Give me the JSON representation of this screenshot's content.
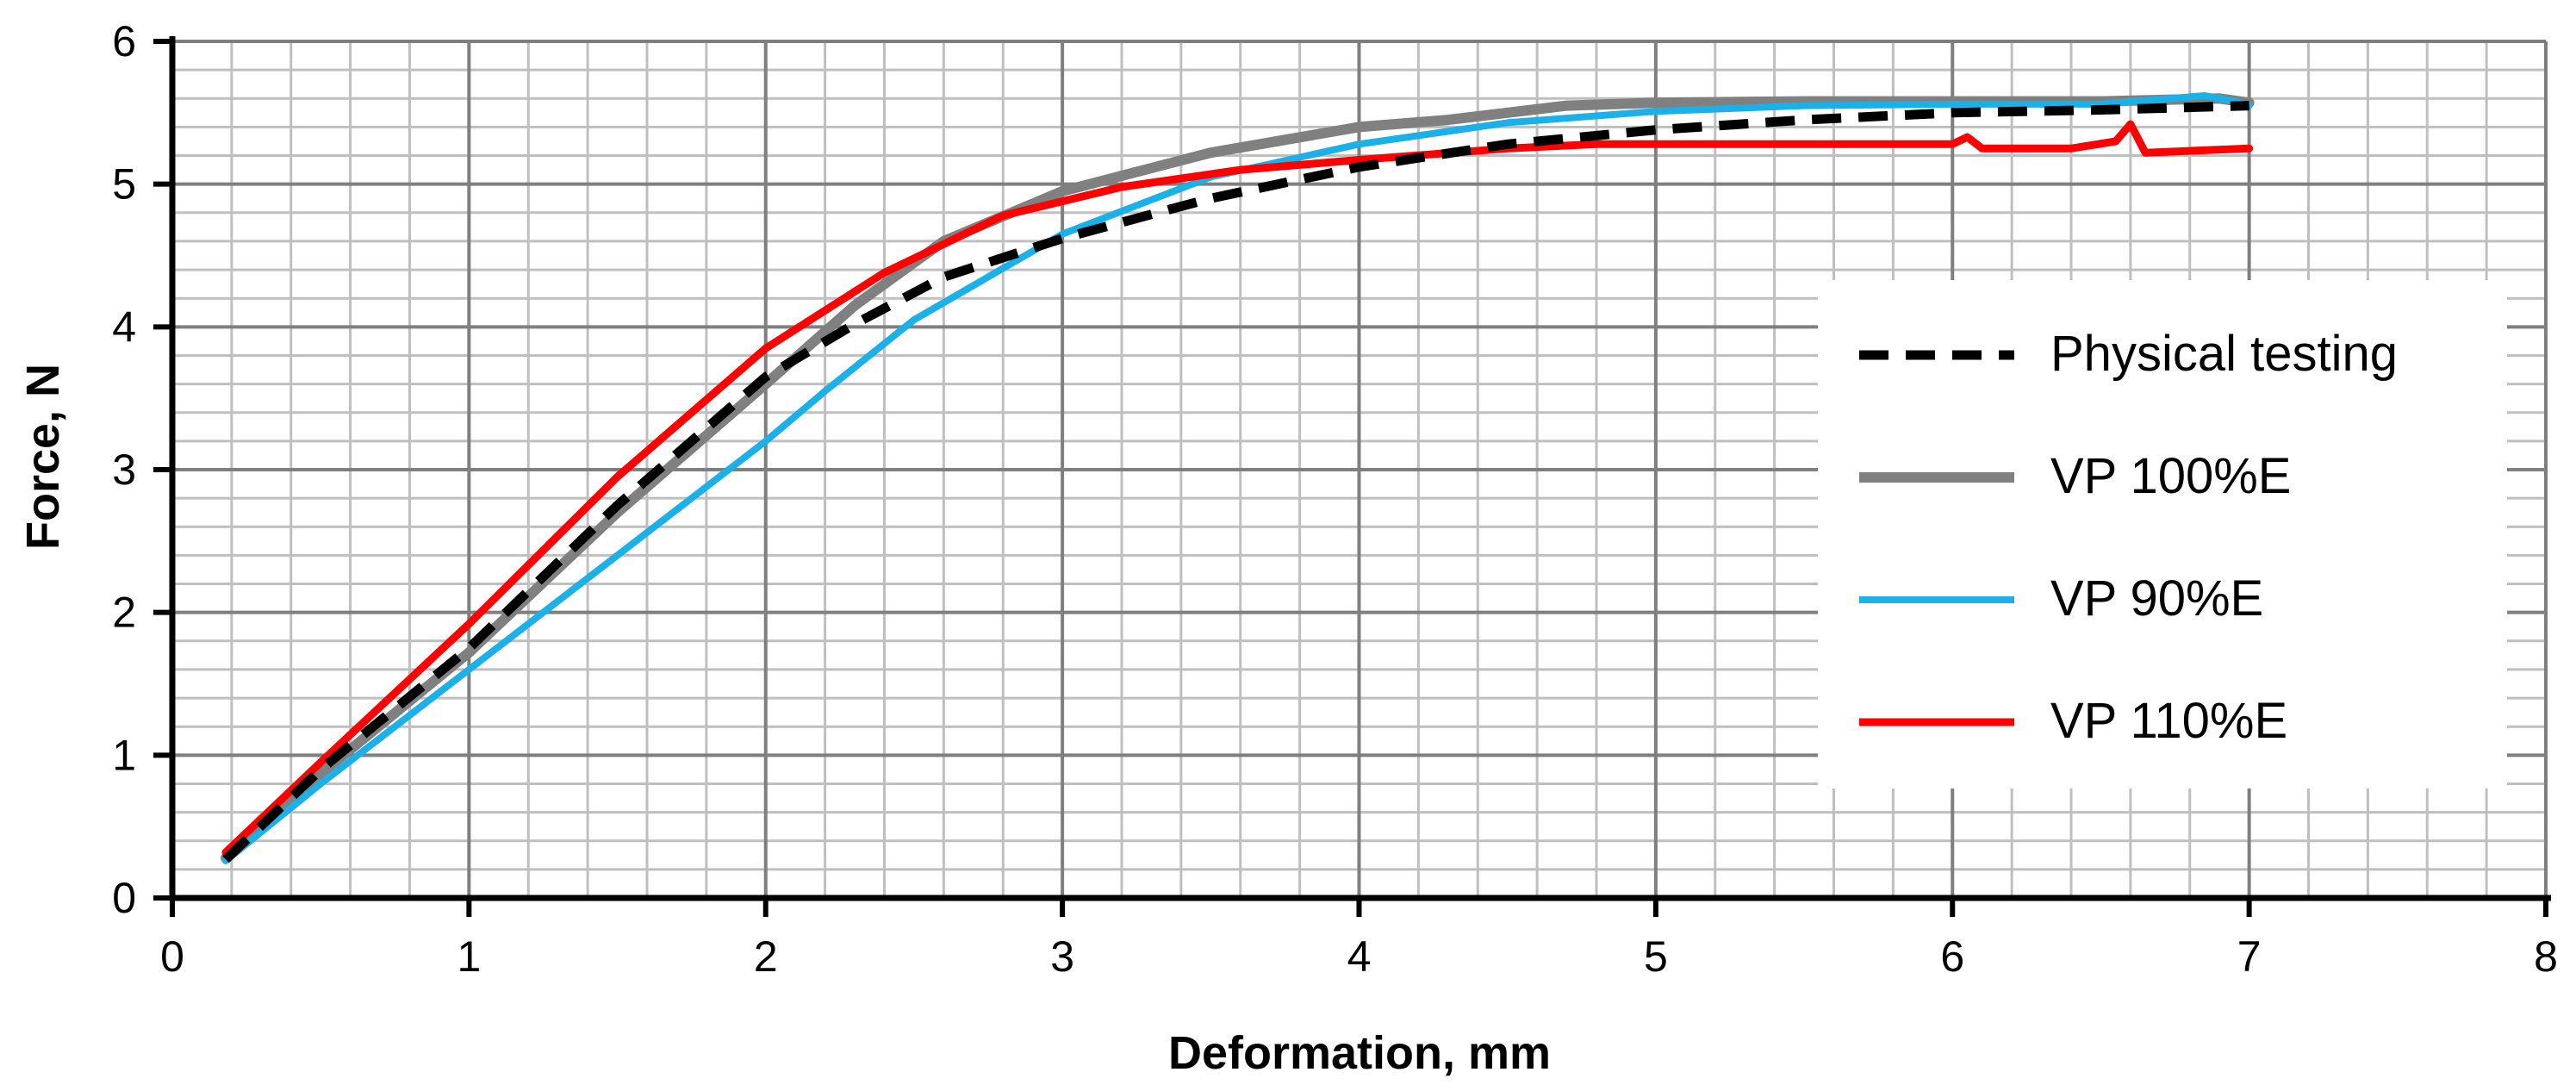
{
  "chart_data": {
    "type": "line",
    "title": "",
    "xlabel": "Deformation, mm",
    "ylabel": "Force, N",
    "xlim": [
      0,
      8
    ],
    "ylim": [
      0,
      6
    ],
    "x_major_ticks": [
      0,
      1,
      2,
      3,
      4,
      5,
      6,
      7,
      8
    ],
    "y_major_ticks": [
      0,
      1,
      2,
      3,
      4,
      5,
      6
    ],
    "x_tick_labels": [
      "0",
      "1",
      "2",
      "3",
      "4",
      "5",
      "6",
      "7",
      "8"
    ],
    "y_tick_labels": [
      "0",
      "1",
      "2",
      "3",
      "4",
      "5",
      "6"
    ],
    "x_minor_step": 0.2,
    "y_minor_step": 0.2,
    "grid": true,
    "legend_position": "right",
    "series": [
      {
        "name": "Physical testing",
        "color": "#000000",
        "dash": "dashed",
        "x": [
          0.18,
          0.5,
          1.0,
          1.5,
          2.0,
          2.3,
          2.6,
          3.0,
          3.5,
          4.0,
          4.5,
          5.0,
          5.5,
          6.0,
          6.5,
          7.0
        ],
        "y": [
          0.27,
          0.9,
          1.75,
          2.75,
          3.65,
          4.02,
          4.35,
          4.62,
          4.9,
          5.12,
          5.28,
          5.38,
          5.45,
          5.5,
          5.52,
          5.55
        ]
      },
      {
        "name": "VP 100%E",
        "color": "#808080",
        "dash": "solid",
        "x": [
          0.18,
          0.5,
          1.0,
          1.5,
          2.0,
          2.3,
          2.6,
          3.0,
          3.5,
          4.0,
          4.3,
          4.7,
          5.0,
          5.5,
          6.0,
          6.5,
          6.9,
          7.0
        ],
        "y": [
          0.28,
          0.87,
          1.72,
          2.7,
          3.6,
          4.15,
          4.6,
          4.95,
          5.22,
          5.4,
          5.45,
          5.55,
          5.57,
          5.58,
          5.58,
          5.58,
          5.6,
          5.57
        ]
      },
      {
        "name": "VP 90%E",
        "color": "#1cb0e8",
        "dash": "solid",
        "x": [
          0.18,
          0.5,
          1.0,
          1.5,
          2.0,
          2.2,
          2.5,
          3.0,
          3.5,
          4.0,
          4.5,
          5.0,
          5.5,
          6.0,
          6.5,
          6.85,
          6.95,
          7.0
        ],
        "y": [
          0.26,
          0.8,
          1.6,
          2.4,
          3.2,
          3.55,
          4.05,
          4.65,
          5.05,
          5.28,
          5.43,
          5.51,
          5.55,
          5.56,
          5.56,
          5.62,
          5.58,
          5.55
        ]
      },
      {
        "name": "VP 110%E",
        "color": "#ff0000",
        "dash": "solid",
        "x": [
          0.18,
          0.5,
          1.0,
          1.5,
          2.0,
          2.4,
          2.8,
          3.2,
          3.6,
          4.0,
          4.5,
          4.8,
          5.0,
          5.5,
          6.0,
          6.05,
          6.1,
          6.4,
          6.55,
          6.6,
          6.65,
          7.0
        ],
        "y": [
          0.32,
          0.95,
          1.92,
          2.95,
          3.85,
          4.38,
          4.78,
          4.98,
          5.1,
          5.17,
          5.25,
          5.28,
          5.28,
          5.28,
          5.28,
          5.33,
          5.25,
          5.25,
          5.3,
          5.42,
          5.22,
          5.25
        ]
      }
    ]
  }
}
